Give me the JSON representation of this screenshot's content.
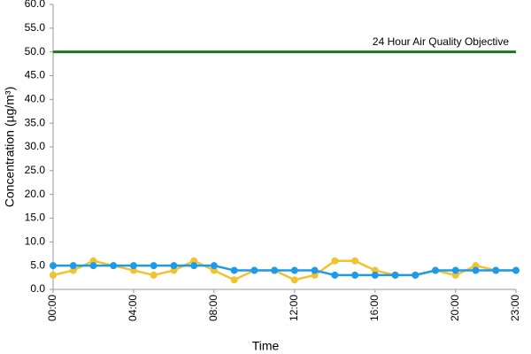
{
  "chart_data": {
    "type": "line",
    "x_label": "Time",
    "y_label": "Concentration (µg/m³)",
    "categories": [
      "00:00",
      null,
      null,
      null,
      "04:00",
      null,
      null,
      null,
      "08:00",
      null,
      null,
      null,
      "12:00",
      null,
      null,
      null,
      "16:00",
      null,
      null,
      null,
      "20:00",
      null,
      null,
      "23:00"
    ],
    "series": [
      {
        "color": "#f2c230",
        "values": [
          3,
          4,
          6,
          5,
          4,
          3,
          4,
          6,
          4,
          2,
          4,
          4,
          2,
          3,
          6,
          6,
          4,
          3,
          3,
          4,
          3,
          5,
          4,
          4
        ]
      },
      {
        "color": "#1e9be8",
        "values": [
          5,
          5,
          5,
          5,
          5,
          5,
          5,
          5,
          5,
          4,
          4,
          4,
          4,
          4,
          3,
          3,
          3,
          3,
          3,
          4,
          4,
          4,
          4,
          4
        ]
      }
    ],
    "objective": {
      "value": 50,
      "label": "24 Hour Air Quality Objective",
      "color": "#1a7a1a"
    },
    "ylim": [
      0,
      60
    ],
    "yticks": [
      {
        "value": 0,
        "label": "0.0"
      },
      {
        "value": 5,
        "label": "5.0"
      },
      {
        "value": 10,
        "label": "10.0"
      },
      {
        "value": 15,
        "label": "15.0"
      },
      {
        "value": 20,
        "label": "20.0"
      },
      {
        "value": 25,
        "label": "25.0"
      },
      {
        "value": 30,
        "label": "30.0"
      },
      {
        "value": 35,
        "label": "35.0"
      },
      {
        "value": 40,
        "label": "40.0"
      },
      {
        "value": 45,
        "label": "45.0"
      },
      {
        "value": 50,
        "label": "50.0"
      },
      {
        "value": 55,
        "label": "55.0"
      },
      {
        "value": 60,
        "label": "60.0"
      }
    ]
  }
}
